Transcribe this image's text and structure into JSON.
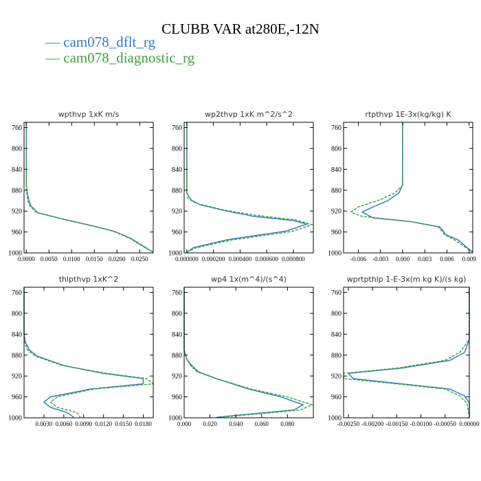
{
  "figure": {
    "title": "CLUBB VAR at280E,-12N",
    "legend": [
      {
        "label": "cam078_dflt_rg",
        "color": "#2f7fbf",
        "dash": false
      },
      {
        "label": "cam078_diagnostic_rg",
        "color": "#3ea33e",
        "dash": true
      }
    ]
  },
  "chart_data": [
    {
      "type": "line",
      "title": "wpthvp  1xK m/s",
      "ylim": [
        750,
        1000
      ],
      "y_inverted": true,
      "yticks": [
        760,
        800,
        840,
        880,
        920,
        960,
        1000
      ],
      "xlim": [
        -0.0005,
        0.028
      ],
      "xticks": [
        0,
        0.005,
        0.01,
        0.015,
        0.02,
        0.025
      ],
      "xtick_labels": [
        "0.0000",
        "0.0050",
        "0.0100",
        "0.0150",
        "0.0200",
        "0.0250"
      ],
      "series": [
        {
          "name": "cam078_dflt_rg",
          "points": [
            [
              0,
              750
            ],
            [
              0,
              870
            ],
            [
              0.0002,
              885
            ],
            [
              0.0006,
              900
            ],
            [
              0.001,
              910
            ],
            [
              0.0025,
              923
            ],
            [
              0.0075,
              934
            ],
            [
              0.012,
              943
            ],
            [
              0.016,
              951
            ],
            [
              0.0195,
              959
            ],
            [
              0.023,
              972
            ],
            [
              0.026,
              988
            ],
            [
              0.028,
              999
            ]
          ]
        },
        {
          "name": "cam078_diagnostic_rg",
          "points": [
            [
              0,
              750
            ],
            [
              0,
              870
            ],
            [
              0.0001,
              885
            ],
            [
              0.0003,
              900
            ],
            [
              0.0008,
              910
            ],
            [
              0.0023,
              923
            ],
            [
              0.0073,
              934
            ],
            [
              0.0118,
              943
            ],
            [
              0.0158,
              951
            ],
            [
              0.0193,
              959
            ],
            [
              0.0228,
              972
            ],
            [
              0.0258,
              988
            ],
            [
              0.028,
              999
            ]
          ]
        }
      ]
    },
    {
      "type": "line",
      "title": "wp2thvp  1xK m^2/s^2",
      "ylim": [
        750,
        1000
      ],
      "y_inverted": true,
      "yticks": [
        760,
        800,
        840,
        880,
        920,
        960,
        1000
      ],
      "xlim": [
        -2e-05,
        0.00095
      ],
      "xticks": [
        0,
        0.0002,
        0.0004,
        0.0006,
        0.0008
      ],
      "xtick_labels": [
        "0.000000",
        "0.000200",
        "0.000400",
        "0.000600",
        "0.000800"
      ],
      "series": [
        {
          "name": "cam078_dflt_rg",
          "points": [
            [
              0,
              750
            ],
            [
              0,
              885
            ],
            [
              3e-05,
              898
            ],
            [
              0.0001,
              908
            ],
            [
              0.0003,
              920
            ],
            [
              0.0005,
              930
            ],
            [
              0.0008,
              938
            ],
            [
              0.0009,
              945
            ],
            [
              0.00075,
              958
            ],
            [
              0.0003,
              975
            ],
            [
              5e-05,
              990
            ],
            [
              0,
              999
            ]
          ]
        },
        {
          "name": "cam078_diagnostic_rg",
          "points": [
            [
              0,
              750
            ],
            [
              0,
              885
            ],
            [
              1e-05,
              896
            ],
            [
              7e-05,
              905
            ],
            [
              0.00028,
              918
            ],
            [
              0.00052,
              928
            ],
            [
              0.00082,
              937
            ],
            [
              0.00094,
              946
            ],
            [
              0.00079,
              959
            ],
            [
              0.00032,
              976
            ],
            [
              6e-05,
              991
            ],
            [
              0,
              999
            ]
          ]
        }
      ]
    },
    {
      "type": "line",
      "title": "rtpthvp  1E-3x(kg/kg) K",
      "ylim": [
        750,
        1000
      ],
      "y_inverted": true,
      "yticks": [
        760,
        800,
        840,
        880,
        920,
        960,
        1000
      ],
      "xlim": [
        -0.008,
        0.0095
      ],
      "xticks": [
        -0.006,
        -0.003,
        0,
        0.003,
        0.006,
        0.009
      ],
      "xtick_labels": [
        "-0.006",
        "-0.003",
        "0.000",
        "0.003",
        "0.006",
        "0.009"
      ],
      "series": [
        {
          "name": "cam078_dflt_rg",
          "points": [
            [
              0,
              750
            ],
            [
              0,
              870
            ],
            [
              -0.0005,
              885
            ],
            [
              -0.002,
              900
            ],
            [
              -0.004,
              912
            ],
            [
              -0.0055,
              922
            ],
            [
              -0.004,
              933
            ],
            [
              0.001,
              940
            ],
            [
              0.005,
              950
            ],
            [
              0.0055,
              958
            ],
            [
              0.0058,
              965
            ],
            [
              0.0075,
              975
            ],
            [
              0.0095,
              999
            ]
          ]
        },
        {
          "name": "cam078_diagnostic_rg",
          "points": [
            [
              0,
              750
            ],
            [
              0,
              870
            ],
            [
              -0.001,
              885
            ],
            [
              -0.003,
              898
            ],
            [
              -0.006,
              912
            ],
            [
              -0.007,
              922
            ],
            [
              -0.0055,
              930
            ],
            [
              0.001,
              940
            ],
            [
              0.0048,
              950
            ],
            [
              0.0053,
              958
            ],
            [
              0.0057,
              965
            ],
            [
              0.007,
              975
            ],
            [
              0.0095,
              999
            ]
          ]
        }
      ]
    },
    {
      "type": "line",
      "title": "thlpthvp  1xK^2",
      "ylim": [
        750,
        1000
      ],
      "y_inverted": true,
      "yticks": [
        760,
        800,
        840,
        880,
        920,
        960,
        1000
      ],
      "xlim": [
        0.0,
        0.0195
      ],
      "xticks": [
        0.003,
        0.006,
        0.009,
        0.012,
        0.015,
        0.018
      ],
      "xtick_labels": [
        "0.0030",
        "0.0060",
        "0.0090",
        "0.0120",
        "0.0150",
        "0.0180"
      ],
      "series": [
        {
          "name": "cam078_dflt_rg",
          "points": [
            [
              0,
              750
            ],
            [
              0,
              840
            ],
            [
              0.0002,
              855
            ],
            [
              0.0008,
              870
            ],
            [
              0.002,
              882
            ],
            [
              0.006,
              900
            ],
            [
              0.012,
              915
            ],
            [
              0.018,
              925
            ],
            [
              0.018,
              935
            ],
            [
              0.01,
              945
            ],
            [
              0.004,
              960
            ],
            [
              0.003,
              970
            ],
            [
              0.004,
              980
            ],
            [
              0.0065,
              990
            ],
            [
              0.0075,
              999
            ]
          ]
        },
        {
          "name": "cam078_diagnostic_rg",
          "points": [
            [
              0,
              750
            ],
            [
              0,
              840
            ],
            [
              0.0001,
              855
            ],
            [
              0.0005,
              870
            ],
            [
              0.0017,
              882
            ],
            [
              0.0058,
              900
            ],
            [
              0.0125,
              915
            ],
            [
              0.0185,
              925
            ],
            [
              0.0195,
              935
            ],
            [
              0.0105,
              945
            ],
            [
              0.005,
              960
            ],
            [
              0.004,
              970
            ],
            [
              0.005,
              980
            ],
            [
              0.008,
              990
            ],
            [
              0.0085,
              999
            ]
          ]
        }
      ]
    },
    {
      "type": "line",
      "title": "wp4  1x(m^4)/(s^4)",
      "ylim": [
        750,
        1000
      ],
      "y_inverted": true,
      "yticks": [
        760,
        800,
        840,
        880,
        920,
        960,
        1000
      ],
      "xlim": [
        0.0,
        0.1
      ],
      "xticks": [
        0,
        0.02,
        0.04,
        0.06,
        0.08
      ],
      "xtick_labels": [
        "0.000",
        "0.020",
        "0.040",
        "0.060",
        "0.080"
      ],
      "series": [
        {
          "name": "cam078_dflt_rg",
          "points": [
            [
              0,
              750
            ],
            [
              0,
              870
            ],
            [
              0.002,
              888
            ],
            [
              0.006,
              900
            ],
            [
              0.011,
              912
            ],
            [
              0.025,
              925
            ],
            [
              0.05,
              945
            ],
            [
              0.075,
              960
            ],
            [
              0.092,
              975
            ],
            [
              0.085,
              985
            ],
            [
              0.055,
              992
            ],
            [
              0.025,
              999
            ]
          ]
        },
        {
          "name": "cam078_diagnostic_rg",
          "points": [
            [
              0,
              750
            ],
            [
              0,
              870
            ],
            [
              0.002,
              888
            ],
            [
              0.005,
              900
            ],
            [
              0.01,
              912
            ],
            [
              0.025,
              925
            ],
            [
              0.052,
              945
            ],
            [
              0.08,
              960
            ],
            [
              0.099,
              975
            ],
            [
              0.09,
              985
            ],
            [
              0.06,
              992
            ],
            [
              0.028,
              999
            ]
          ]
        }
      ]
    },
    {
      "type": "line",
      "title": "wprtpthlp  1-E-3x(m kg K)/(s kg)",
      "ylim": [
        750,
        1000
      ],
      "y_inverted": true,
      "yticks": [
        760,
        800,
        840,
        880,
        920,
        960,
        1000
      ],
      "xlim": [
        -0.0026,
        0.0
      ],
      "xticks": [
        -0.0025,
        -0.002,
        -0.0015,
        -0.001,
        -0.0005,
        0
      ],
      "xtick_labels": [
        "-0.00250",
        "-0.00200",
        "-0.00150",
        "-0.00100",
        "-0.00050",
        "0.00000"
      ],
      "series": [
        {
          "name": "cam078_dflt_rg",
          "points": [
            [
              0,
              750
            ],
            [
              0,
              850
            ],
            [
              -0.0001,
              875
            ],
            [
              -0.0004,
              890
            ],
            [
              -0.0014,
              905
            ],
            [
              -0.0025,
              915
            ],
            [
              -0.0024,
              925
            ],
            [
              -0.0014,
              935
            ],
            [
              -0.0004,
              945
            ],
            [
              -0.0001,
              958
            ],
            [
              0,
              972
            ],
            [
              0,
              999
            ]
          ]
        },
        {
          "name": "cam078_diagnostic_rg",
          "points": [
            [
              0,
              750
            ],
            [
              0,
              850
            ],
            [
              -0.0002,
              875
            ],
            [
              -0.0005,
              890
            ],
            [
              -0.0015,
              905
            ],
            [
              -0.0026,
              915
            ],
            [
              -0.0026,
              925
            ],
            [
              -0.0015,
              935
            ],
            [
              -0.0005,
              945
            ],
            [
              -0.0002,
              958
            ],
            [
              -5e-05,
              972
            ],
            [
              0,
              999
            ]
          ]
        }
      ]
    }
  ]
}
